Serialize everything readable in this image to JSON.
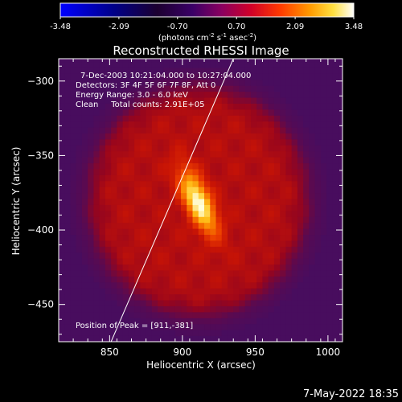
{
  "chart_data": {
    "type": "heatmap",
    "title": "Reconstructed RHESSI Image",
    "xlabel": "Heliocentric X (arcsec)",
    "ylabel": "Heliocentric Y (arcsec)",
    "xlim": [
      815,
      1010
    ],
    "ylim": [
      -475,
      -285
    ],
    "x_ticks": [
      850,
      900,
      950,
      1000
    ],
    "y_ticks": [
      -300,
      -350,
      -400,
      -450
    ],
    "colorbar": {
      "ticks": [
        "-3.48",
        "-2.09",
        "-0.70",
        "0.70",
        "2.09",
        "3.48"
      ],
      "range": [
        -3.48,
        3.48
      ],
      "unit_label": "(photons cm",
      "unit_exp1": "-2",
      "unit_mid": " s",
      "unit_exp2": "-1",
      "unit_mid2": " asec",
      "unit_exp3": "-2",
      "unit_end": ")"
    },
    "annotations": {
      "time": "7-Dec-2003 10:21:04.000 to 10:27:04.000",
      "detectors": "Detectors: 3F 4F 5F 6F 7F 8F, Att 0",
      "energy": "Energy Range: 3.0 - 6.0 keV",
      "clean": "Clean     Total counts: 2.91E+05",
      "peak": "Position of Peak = [911,-381]"
    },
    "peak": [
      911,
      -381
    ],
    "limb_line": {
      "from": [
        851,
        -475
      ],
      "to": [
        935,
        -285
      ]
    },
    "source": {
      "disk_center": [
        911,
        -380
      ],
      "disk_radius": 75,
      "core_center": [
        911,
        -381
      ],
      "core_peak": 3.48
    },
    "footer": "7-May-2022 18:35"
  }
}
